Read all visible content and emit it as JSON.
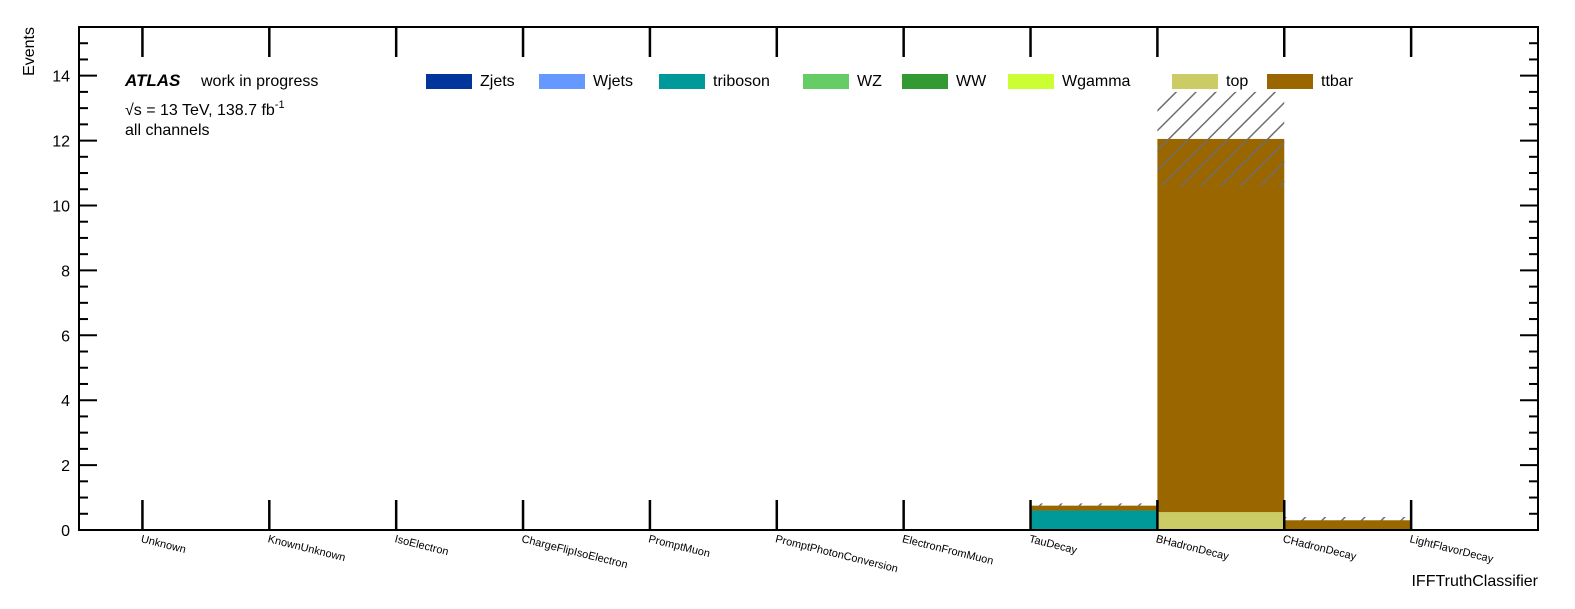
{
  "chart_data": {
    "type": "bar",
    "stacked": true,
    "xlabel": "IFFTruthClassifier",
    "ylabel": "Events",
    "ylim": [
      0,
      15.5
    ],
    "yticks": [
      0,
      2,
      4,
      6,
      8,
      10,
      12,
      14
    ],
    "categories": [
      "Unknown",
      "KnownUnknown",
      "IsoElectron",
      "ChargeFlipIsoElectron",
      "PromptMuon",
      "PromptPhotonConversion",
      "ElectronFromMuon",
      "TauDecay",
      "BHadronDecay",
      "CHadronDecay",
      "LightFlavorDecay"
    ],
    "series": [
      {
        "name": "Zjets",
        "color": "#00359b",
        "values": [
          0,
          0,
          0,
          0,
          0,
          0,
          0,
          0,
          0,
          0,
          0
        ]
      },
      {
        "name": "Wjets",
        "color": "#6699ff",
        "values": [
          0,
          0,
          0,
          0,
          0,
          0,
          0,
          0,
          0,
          0,
          0
        ]
      },
      {
        "name": "triboson",
        "color": "#009999",
        "values": [
          0,
          0,
          0,
          0,
          0,
          0,
          0,
          0.6,
          0,
          0,
          0
        ]
      },
      {
        "name": "WZ",
        "color": "#66cc66",
        "values": [
          0,
          0,
          0,
          0,
          0,
          0,
          0,
          0,
          0,
          0,
          0
        ]
      },
      {
        "name": "WW",
        "color": "#339933",
        "values": [
          0,
          0,
          0,
          0,
          0,
          0,
          0,
          0,
          0,
          0,
          0
        ]
      },
      {
        "name": "Wgamma",
        "color": "#ccff33",
        "values": [
          0,
          0,
          0,
          0,
          0,
          0,
          0,
          0,
          0,
          0,
          0
        ]
      },
      {
        "name": "top",
        "color": "#cccc66",
        "values": [
          0,
          0,
          0,
          0,
          0,
          0,
          0,
          0,
          0.55,
          0,
          0
        ]
      },
      {
        "name": "ttbar",
        "color": "#996600",
        "values": [
          0,
          0,
          0,
          0,
          0,
          0,
          0,
          0.15,
          11.5,
          0.3,
          0
        ]
      }
    ],
    "uncertainty": [
      {
        "category": "TauDecay",
        "low": 0.72,
        "high": 0.82
      },
      {
        "category": "BHadronDecay",
        "low": 10.6,
        "high": 13.5
      },
      {
        "category": "CHadronDecay",
        "low": 0.28,
        "high": 0.4
      }
    ],
    "grid": false,
    "legend": "top"
  },
  "annotations": {
    "atlas": "ATLAS",
    "status": "work in progress",
    "energy_prefix": "√s = 13 TeV, 138.7 fb",
    "energy_exp": "-1",
    "channel": "all channels"
  }
}
